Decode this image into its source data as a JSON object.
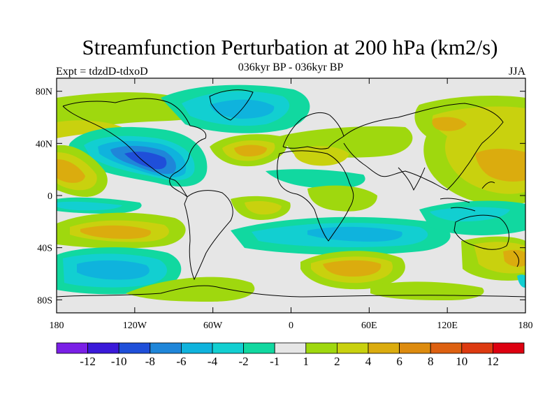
{
  "title": "Streamfunction Perturbation at 200 hPa (km2/s)",
  "subtitle": "036kyr BP - 036kyr BP",
  "left_string": "Expt = tdzdD-tdxoD",
  "right_string": "JJA",
  "map": {
    "lon_range": [
      -180,
      180
    ],
    "lat_range": [
      -90,
      90
    ],
    "lat_ticks": [
      {
        "value": 80,
        "label": "80N"
      },
      {
        "value": 40,
        "label": "40N"
      },
      {
        "value": 0,
        "label": "0"
      },
      {
        "value": -40,
        "label": "40S"
      },
      {
        "value": -80,
        "label": "80S"
      }
    ],
    "lon_ticks": [
      {
        "value": -180,
        "label": "180"
      },
      {
        "value": -120,
        "label": "120W"
      },
      {
        "value": -60,
        "label": "60W"
      },
      {
        "value": 0,
        "label": "0"
      },
      {
        "value": 60,
        "label": "60E"
      },
      {
        "value": 120,
        "label": "120E"
      },
      {
        "value": 180,
        "label": "180"
      }
    ],
    "background_color": "#e6e6e6",
    "coastline_color": "#000000"
  },
  "colorbar": {
    "colors": [
      "#7a1fe6",
      "#3a19d9",
      "#1f4fd9",
      "#1f86d9",
      "#0fb3dd",
      "#12cfd1",
      "#11d8a0",
      "#e6e6e6",
      "#9fd80e",
      "#c9d10e",
      "#dbac0e",
      "#dd8b0e",
      "#dd6010",
      "#dd3a10",
      "#dd0010"
    ],
    "labels": [
      "-12",
      "-10",
      "-8",
      "-6",
      "-4",
      "-2",
      "-1",
      "1",
      "2",
      "4",
      "6",
      "8",
      "10",
      "12"
    ]
  }
}
